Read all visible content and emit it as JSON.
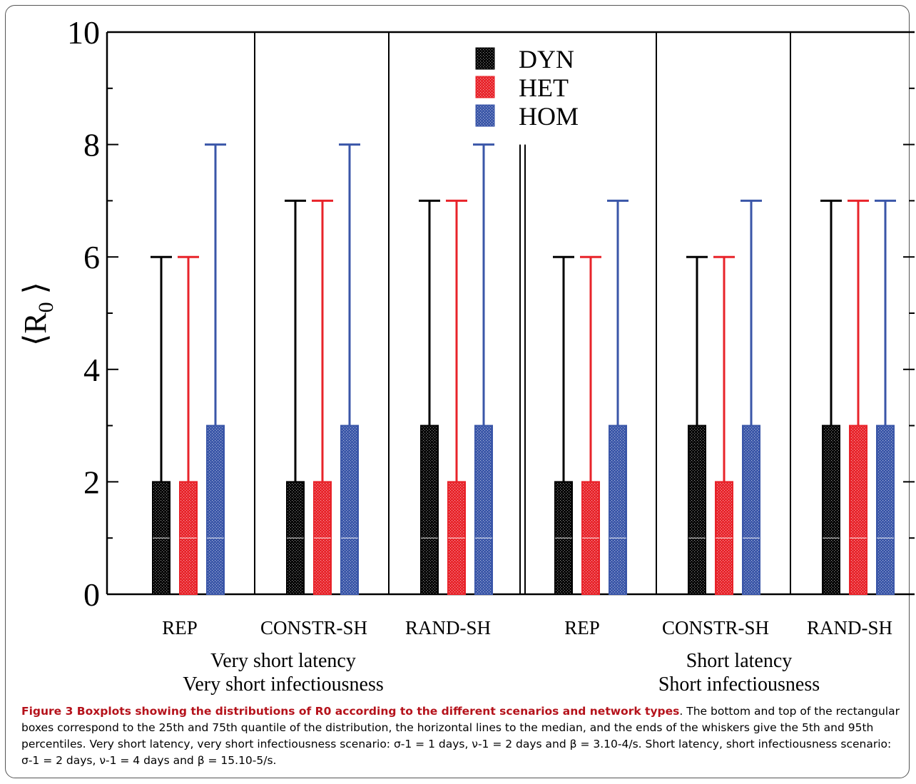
{
  "chart_data": {
    "type": "boxplot",
    "ylabel": "⟨R0⟩",
    "ylabel_main": "⟨R",
    "ylabel_sub": "0",
    "ylabel_close": "⟩",
    "ylim": [
      0,
      10
    ],
    "yticks": [
      0,
      2,
      4,
      6,
      8,
      10
    ],
    "y_minor_ticks": [
      1,
      3,
      5,
      7,
      9
    ],
    "grid": false,
    "legend_position": "top-center",
    "series": [
      {
        "name": "DYN",
        "color": "#000000"
      },
      {
        "name": "HET",
        "color": "#e8232a"
      },
      {
        "name": "HOM",
        "color": "#3a56a8"
      }
    ],
    "categories": [
      "REP",
      "CONSTR-SH",
      "RAND-SH",
      "REP",
      "CONSTR-SH",
      "RAND-SH"
    ],
    "scenarios": [
      {
        "line1": "Very short latency",
        "line2": "Very short infectiousness"
      },
      {
        "line1": "Short latency",
        "line2": "Short infectiousness"
      }
    ],
    "groups": [
      {
        "category": "REP",
        "boxes": [
          {
            "series": "DYN",
            "q1": 0,
            "median": 1,
            "q3": 2,
            "p5": 0,
            "p95": 6
          },
          {
            "series": "HET",
            "q1": 0,
            "median": 1,
            "q3": 2,
            "p5": 0,
            "p95": 6
          },
          {
            "series": "HOM",
            "q1": 0,
            "median": 1,
            "q3": 3,
            "p5": 0,
            "p95": 8
          }
        ]
      },
      {
        "category": "CONSTR-SH",
        "boxes": [
          {
            "series": "DYN",
            "q1": 0,
            "median": 1,
            "q3": 2,
            "p5": 0,
            "p95": 7
          },
          {
            "series": "HET",
            "q1": 0,
            "median": 1,
            "q3": 2,
            "p5": 0,
            "p95": 7
          },
          {
            "series": "HOM",
            "q1": 0,
            "median": 1,
            "q3": 3,
            "p5": 0,
            "p95": 8
          }
        ]
      },
      {
        "category": "RAND-SH",
        "boxes": [
          {
            "series": "DYN",
            "q1": 0,
            "median": 1,
            "q3": 3,
            "p5": 0,
            "p95": 7
          },
          {
            "series": "HET",
            "q1": 0,
            "median": 1,
            "q3": 2,
            "p5": 0,
            "p95": 7
          },
          {
            "series": "HOM",
            "q1": 0,
            "median": 1,
            "q3": 3,
            "p5": 0,
            "p95": 8
          }
        ]
      },
      {
        "category": "REP",
        "boxes": [
          {
            "series": "DYN",
            "q1": 0,
            "median": 1,
            "q3": 2,
            "p5": 0,
            "p95": 6
          },
          {
            "series": "HET",
            "q1": 0,
            "median": 1,
            "q3": 2,
            "p5": 0,
            "p95": 6
          },
          {
            "series": "HOM",
            "q1": 0,
            "median": 1,
            "q3": 3,
            "p5": 0,
            "p95": 7
          }
        ]
      },
      {
        "category": "CONSTR-SH",
        "boxes": [
          {
            "series": "DYN",
            "q1": 0,
            "median": 1,
            "q3": 3,
            "p5": 0,
            "p95": 6
          },
          {
            "series": "HET",
            "q1": 0,
            "median": 1,
            "q3": 2,
            "p5": 0,
            "p95": 6
          },
          {
            "series": "HOM",
            "q1": 0,
            "median": 1,
            "q3": 3,
            "p5": 0,
            "p95": 7
          }
        ]
      },
      {
        "category": "RAND-SH",
        "boxes": [
          {
            "series": "DYN",
            "q1": 0,
            "median": 1,
            "q3": 3,
            "p5": 0,
            "p95": 7
          },
          {
            "series": "HET",
            "q1": 0,
            "median": 1,
            "q3": 3,
            "p5": 0,
            "p95": 7
          },
          {
            "series": "HOM",
            "q1": 0,
            "median": 1,
            "q3": 3,
            "p5": 0,
            "p95": 7
          }
        ]
      }
    ]
  },
  "caption": {
    "title": "Figure 3 Boxplots showing the distributions of R0 according to the different scenarios and network types",
    "text": ". The bottom and top of the rectangular boxes correspond to the 25th and 75th quantile of the distribution, the horizontal lines to the median, and the ends of the whiskers give the 5th and 95th percentiles. Very short latency, very short infectiousness scenario: σ-1 = 1 days, ν-1 = 2 days and β = 3.10-4/s. Short latency, short infectiousness scenario: σ-1 = 2 days, ν-1 = 4 days and β = 15.10-5/s."
  }
}
